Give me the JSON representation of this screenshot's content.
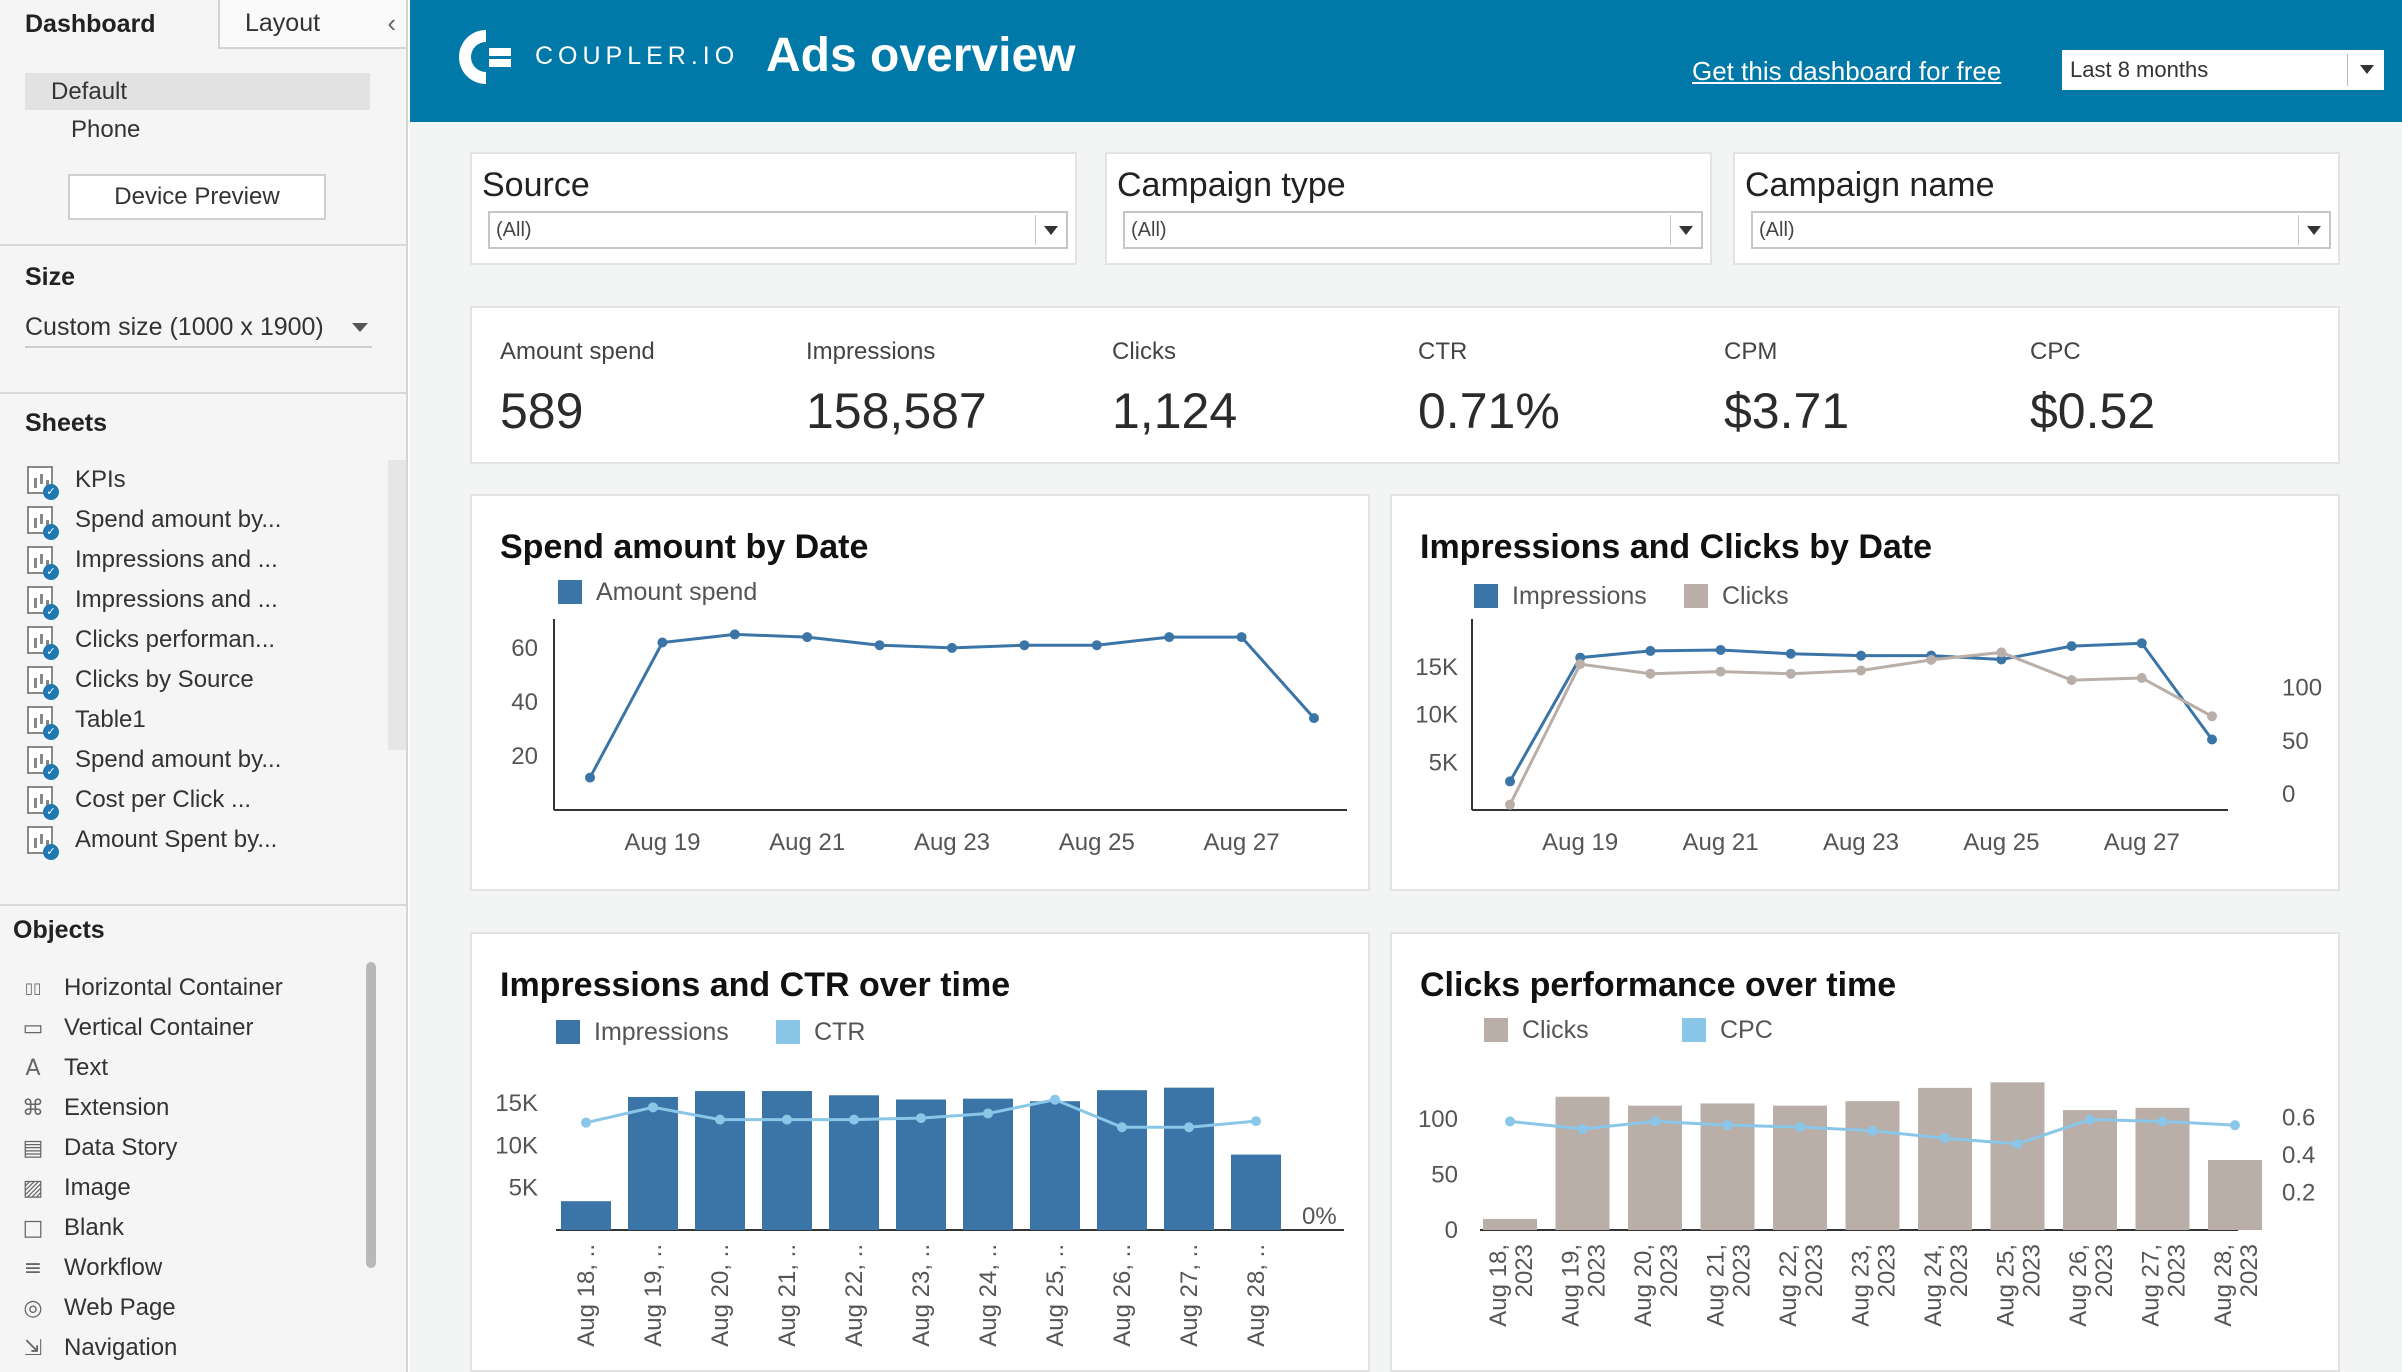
{
  "left_panel": {
    "tabs": [
      "Dashboard",
      "Layout"
    ],
    "devices": [
      "Default",
      "Phone"
    ],
    "device_preview": "Device Preview",
    "size_heading": "Size",
    "size_value": "Custom size (1000 x 1900)",
    "sheets_heading": "Sheets",
    "sheets": [
      "KPIs",
      "Spend amount by...",
      "Impressions and ...",
      "Impressions and ...",
      "Clicks performan...",
      "Clicks by Source",
      "Table1",
      "Spend amount by...",
      "Cost per Click ...",
      "Amount Spent by..."
    ],
    "objects_heading": "Objects",
    "objects": [
      {
        "label": "Horizontal Container",
        "icon": "horizontal-container-icon"
      },
      {
        "label": "Vertical Container",
        "icon": "vertical-container-icon"
      },
      {
        "label": "Text",
        "icon": "text-icon"
      },
      {
        "label": "Extension",
        "icon": "extension-icon"
      },
      {
        "label": "Data Story",
        "icon": "data-story-icon"
      },
      {
        "label": "Image",
        "icon": "image-icon"
      },
      {
        "label": "Blank",
        "icon": "blank-icon"
      },
      {
        "label": "Workflow",
        "icon": "workflow-icon"
      },
      {
        "label": "Web Page",
        "icon": "web-page-icon"
      },
      {
        "label": "Navigation",
        "icon": "navigation-icon"
      }
    ]
  },
  "header": {
    "logo_text": "COUPLER.IO",
    "title": "Ads overview",
    "link": "Get this dashboard for free",
    "period": "Last 8 months",
    "bg_color": "#0078a8"
  },
  "filters": [
    {
      "label": "Source",
      "value": "(All)"
    },
    {
      "label": "Campaign type",
      "value": "(All)"
    },
    {
      "label": "Campaign name",
      "value": "(All)"
    }
  ],
  "kpis": [
    {
      "label": "Amount spend",
      "value": "589"
    },
    {
      "label": "Impressions",
      "value": "158,587"
    },
    {
      "label": "Clicks",
      "value": "1,124"
    },
    {
      "label": "CTR",
      "value": "0.71%"
    },
    {
      "label": "CPM",
      "value": "$3.71"
    },
    {
      "label": "CPC",
      "value": "$0.52"
    }
  ],
  "colors": {
    "blue": "#3b75a7",
    "taupe": "#b9aea8",
    "light_blue": "#8ac6e8",
    "line_blue": "#3b75a7"
  },
  "chart_data": [
    {
      "type": "line",
      "title": "Spend amount by Date",
      "legend": [
        "Amount spend"
      ],
      "x": [
        "Aug 18",
        "Aug 19",
        "Aug 20",
        "Aug 21",
        "Aug 22",
        "Aug 23",
        "Aug 24",
        "Aug 25",
        "Aug 26",
        "Aug 27",
        "Aug 28"
      ],
      "xticks": [
        "Aug 19",
        "Aug 21",
        "Aug 23",
        "Aug 25",
        "Aug 27"
      ],
      "yticks": [
        "60",
        "40",
        "20"
      ],
      "ylim": [
        0,
        67
      ],
      "series": [
        {
          "name": "Amount spend",
          "values": [
            12,
            62,
            65,
            64,
            61,
            60,
            61,
            61,
            64,
            64,
            34
          ]
        }
      ]
    },
    {
      "type": "line",
      "title": "Impressions and Clicks by Date",
      "legend": [
        "Impressions",
        "Clicks"
      ],
      "x": [
        "Aug 18",
        "Aug 19",
        "Aug 20",
        "Aug 21",
        "Aug 22",
        "Aug 23",
        "Aug 24",
        "Aug 25",
        "Aug 26",
        "Aug 27",
        "Aug 28"
      ],
      "xticks": [
        "Aug 19",
        "Aug 21",
        "Aug 23",
        "Aug 25",
        "Aug 27"
      ],
      "yticks_left": [
        "15K",
        "10K",
        "5K"
      ],
      "yticks_right": [
        "100",
        "50",
        "0"
      ],
      "ylim_left": [
        0,
        19000
      ],
      "ylim_right": [
        -15,
        155
      ],
      "series": [
        {
          "name": "Impressions",
          "axis": "left",
          "values": [
            3000,
            16000,
            16700,
            16800,
            16400,
            16200,
            16200,
            15800,
            17200,
            17500,
            7400
          ]
        },
        {
          "name": "Clicks",
          "axis": "right",
          "values": [
            -10,
            122,
            113,
            115,
            113,
            116,
            126,
            133,
            107,
            109,
            73
          ]
        }
      ]
    },
    {
      "type": "bar",
      "title": "Impressions and CTR over time",
      "legend": [
        "Impressions",
        "CTR"
      ],
      "categories": [
        "Aug 18, ..",
        "Aug 19, ..",
        "Aug 20, ..",
        "Aug 21, ..",
        "Aug 22, ..",
        "Aug 23, ..",
        "Aug 24, ..",
        "Aug 25, ..",
        "Aug 26, ..",
        "Aug 27, ..",
        "Aug 28, .."
      ],
      "yticks_left": [
        "15K",
        "10K",
        "5K"
      ],
      "ytick_right": "0%",
      "ylim": [
        0,
        19000
      ],
      "series": [
        {
          "name": "Impressions",
          "values": [
            3400,
            15700,
            16400,
            16400,
            15900,
            15400,
            15500,
            15200,
            16500,
            16800,
            8900
          ]
        },
        {
          "name": "CTR",
          "values": [
            0.7,
            0.8,
            0.72,
            0.72,
            0.72,
            0.73,
            0.76,
            0.85,
            0.67,
            0.67,
            0.71
          ]
        }
      ]
    },
    {
      "type": "bar",
      "title": "Clicks performance over time",
      "legend": [
        "Clicks",
        "CPC"
      ],
      "categories": [
        "Aug 18, 2023",
        "Aug 19, 2023",
        "Aug 20, 2023",
        "Aug 21, 2023",
        "Aug 22, 2023",
        "Aug 23, 2023",
        "Aug 24, 2023",
        "Aug 25, 2023",
        "Aug 26, 2023",
        "Aug 27, 2023",
        "Aug 28, 2023"
      ],
      "yticks_left": [
        "100",
        "50",
        "0"
      ],
      "yticks_right": [
        "0.6",
        "0.4",
        "0.2"
      ],
      "ylim_left": [
        0,
        145
      ],
      "ylim_right": [
        0,
        0.86
      ],
      "series": [
        {
          "name": "Clicks",
          "values": [
            10,
            120,
            112,
            114,
            112,
            116,
            128,
            133,
            108,
            110,
            63
          ]
        },
        {
          "name": "CPC",
          "values": [
            0.58,
            0.54,
            0.58,
            0.56,
            0.55,
            0.53,
            0.49,
            0.46,
            0.59,
            0.58,
            0.56
          ]
        }
      ]
    }
  ]
}
